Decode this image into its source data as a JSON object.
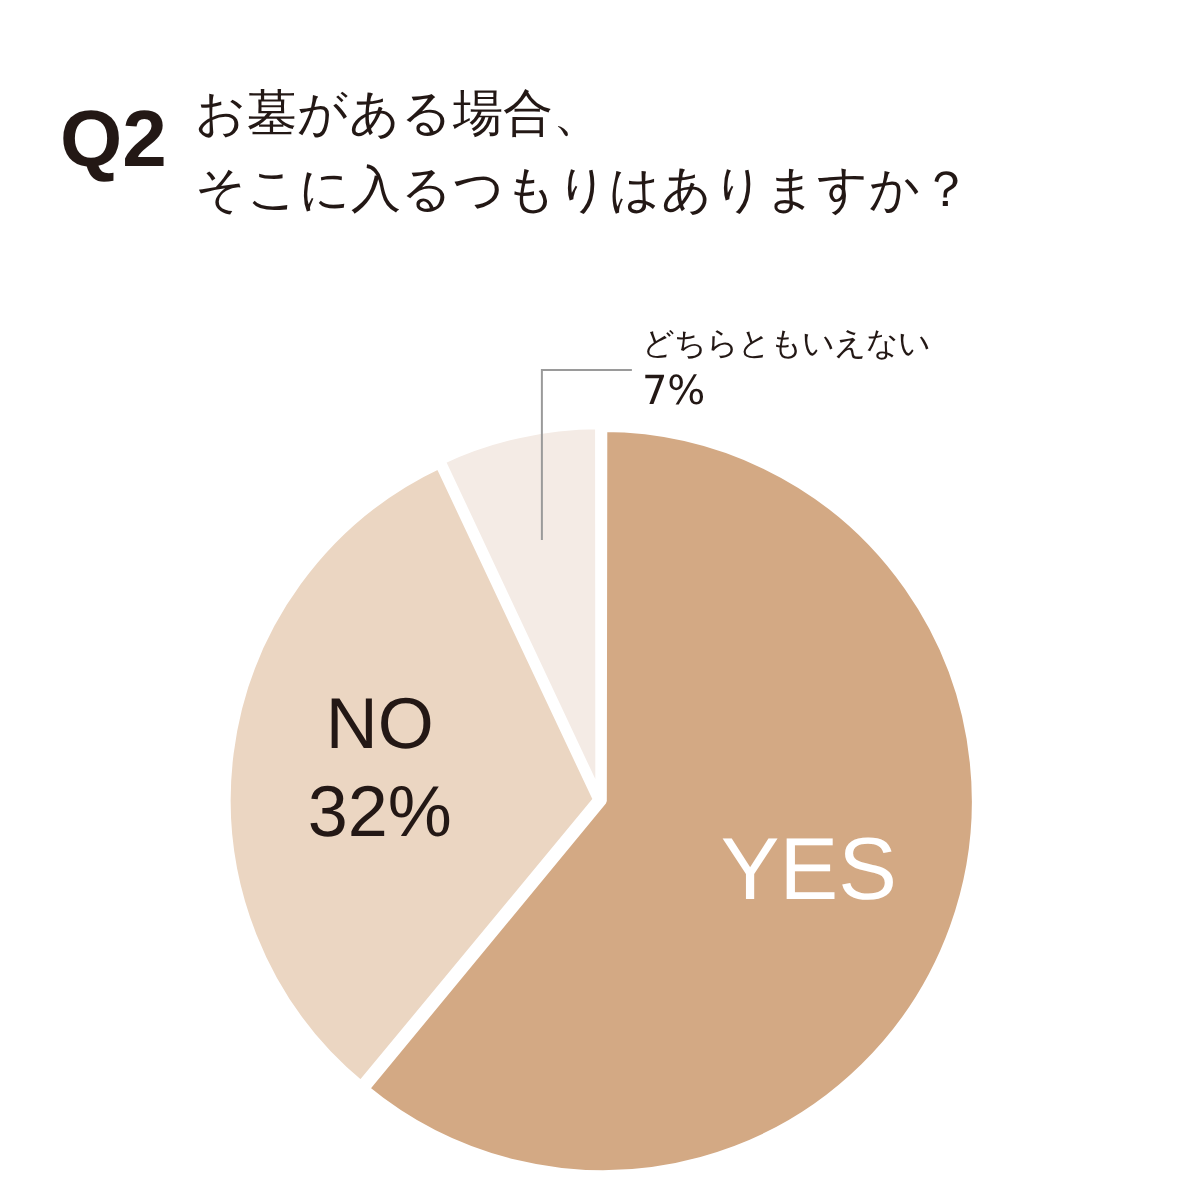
{
  "chart_data": {
    "type": "pie",
    "title": "Q2",
    "subtitle": "お墓がある場合、そこに入るつもりはありますか？",
    "categories": [
      "YES",
      "NO",
      "どちらともいえない"
    ],
    "values": [
      61,
      32,
      7
    ],
    "colors": [
      "#d3a984",
      "#ebd6c2",
      "#f4ebe5"
    ],
    "value_labels": [
      null,
      "32%",
      "7%"
    ],
    "legend": false
  }
}
